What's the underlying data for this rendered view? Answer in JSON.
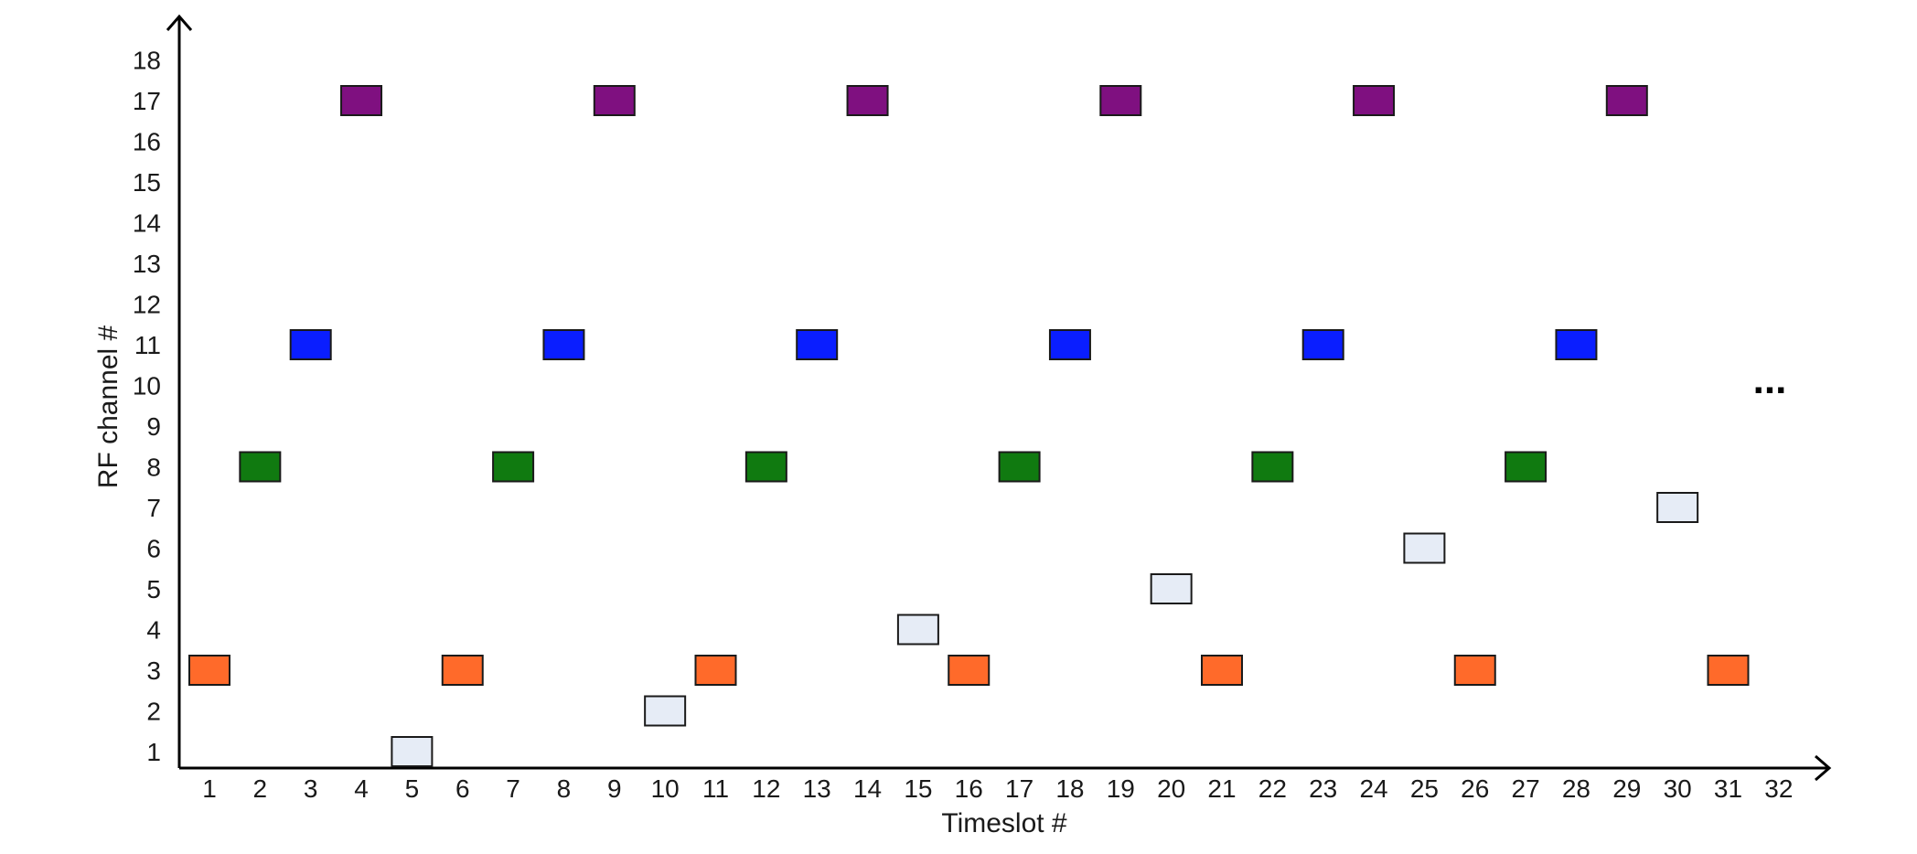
{
  "chart_data": {
    "type": "scatter",
    "xlabel": "Timeslot #",
    "ylabel": "RF channel #",
    "x_ticks": [
      "1",
      "2",
      "3",
      "4",
      "5",
      "6",
      "7",
      "8",
      "9",
      "10",
      "11",
      "12",
      "13",
      "14",
      "15",
      "16",
      "17",
      "18",
      "19",
      "20",
      "21",
      "22",
      "23",
      "24",
      "25",
      "26",
      "27",
      "28",
      "29",
      "30",
      "31",
      "32"
    ],
    "y_ticks": [
      "1",
      "2",
      "3",
      "4",
      "5",
      "6",
      "7",
      "8",
      "9",
      "10",
      "11",
      "12",
      "13",
      "14",
      "15",
      "16",
      "17",
      "18"
    ],
    "xlim": [
      1,
      32
    ],
    "ylim": [
      1,
      18
    ],
    "annotation": "...",
    "highlighted_y_ticks": [
      {
        "value": 3,
        "color": "#ff6a2a"
      },
      {
        "value": 8,
        "color": "#157515"
      },
      {
        "value": 11,
        "color": "#1f3fff"
      },
      {
        "value": 17,
        "color": "#7f1a86"
      }
    ],
    "series": [
      {
        "color": "#ff6a2a",
        "points": [
          [
            1,
            3
          ],
          [
            6,
            3
          ],
          [
            11,
            3
          ],
          [
            16,
            3
          ],
          [
            21,
            3
          ],
          [
            26,
            3
          ],
          [
            31,
            3
          ]
        ]
      },
      {
        "color": "#107a10",
        "points": [
          [
            2,
            8
          ],
          [
            7,
            8
          ],
          [
            12,
            8
          ],
          [
            17,
            8
          ],
          [
            22,
            8
          ],
          [
            27,
            8
          ]
        ]
      },
      {
        "color": "#0a1eff",
        "points": [
          [
            3,
            11
          ],
          [
            8,
            11
          ],
          [
            13,
            11
          ],
          [
            18,
            11
          ],
          [
            23,
            11
          ],
          [
            28,
            11
          ]
        ]
      },
      {
        "color": "#7f1080",
        "points": [
          [
            4,
            17
          ],
          [
            9,
            17
          ],
          [
            14,
            17
          ],
          [
            19,
            17
          ],
          [
            24,
            17
          ],
          [
            29,
            17
          ]
        ]
      },
      {
        "color": "#e6ecf6",
        "points": [
          [
            5,
            1
          ],
          [
            10,
            2
          ],
          [
            15,
            4
          ],
          [
            20,
            5
          ],
          [
            25,
            6
          ],
          [
            30,
            7
          ]
        ]
      }
    ]
  }
}
